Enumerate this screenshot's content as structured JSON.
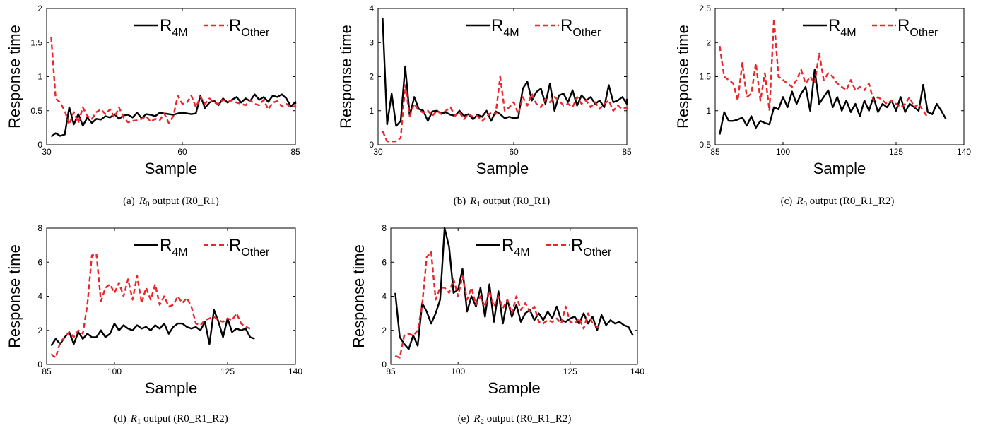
{
  "colors": {
    "r4m": "#000000",
    "rother": "#e8262b",
    "axis": "#000000"
  },
  "chart_data": [
    {
      "type": "line",
      "caption": {
        "tag": "(a)",
        "var": "R",
        "sub": "0",
        "rest": " output (R0_R1)"
      },
      "xlabel": "Sample",
      "ylabel": "Response time",
      "xlim": [
        30,
        85
      ],
      "ylim": [
        0,
        2
      ],
      "xticks": [
        30,
        60,
        85
      ],
      "yticks": [
        0,
        0.5,
        1,
        1.5,
        2
      ],
      "xtick_labels": [
        "30",
        "60",
        "85"
      ],
      "ytick_labels": [
        "0",
        "0.5",
        "1",
        "1.5",
        "2"
      ],
      "legend": {
        "position": "top-right",
        "items": [
          {
            "main": "R",
            "sub": "4M"
          },
          {
            "main": "R",
            "sub": "Other"
          }
        ]
      },
      "x_start": 31,
      "x_step": 1,
      "series": [
        {
          "values": [
            0.12,
            0.17,
            0.13,
            0.15,
            0.55,
            0.3,
            0.45,
            0.28,
            0.4,
            0.32,
            0.38,
            0.37,
            0.42,
            0.4,
            0.45,
            0.38,
            0.43,
            0.44,
            0.4,
            0.47,
            0.39,
            0.45,
            0.44,
            0.42,
            0.47,
            0.46,
            0.45,
            0.44,
            0.46,
            0.47,
            0.46,
            0.45,
            0.46,
            0.72,
            0.54,
            0.62,
            0.65,
            0.58,
            0.68,
            0.62,
            0.66,
            0.7,
            0.62,
            0.68,
            0.64,
            0.74,
            0.66,
            0.7,
            0.63,
            0.72,
            0.7,
            0.74,
            0.68,
            0.56,
            0.63,
            0.6
          ]
        },
        {
          "values": [
            1.58,
            0.68,
            0.62,
            0.5,
            0.3,
            0.48,
            0.32,
            0.55,
            0.42,
            0.38,
            0.48,
            0.52,
            0.45,
            0.52,
            0.4,
            0.55,
            0.4,
            0.33,
            0.35,
            0.36,
            0.38,
            0.42,
            0.34,
            0.38,
            0.36,
            0.46,
            0.32,
            0.42,
            0.72,
            0.6,
            0.62,
            0.72,
            0.55,
            0.7,
            0.6,
            0.68,
            0.62,
            0.6,
            0.66,
            0.63,
            0.65,
            0.62,
            0.6,
            0.58,
            0.65,
            0.6,
            0.58,
            0.66,
            0.52,
            0.62,
            0.64,
            0.56,
            0.6,
            0.55,
            0.57,
            0.52
          ]
        }
      ]
    },
    {
      "type": "line",
      "caption": {
        "tag": "(b)",
        "var": "R",
        "sub": "1",
        "rest": " output (R0_R1)"
      },
      "xlabel": "Sample",
      "ylabel": "Response time",
      "xlim": [
        30,
        85
      ],
      "ylim": [
        0,
        4
      ],
      "xticks": [
        30,
        60,
        85
      ],
      "yticks": [
        0,
        1,
        2,
        3,
        4
      ],
      "xtick_labels": [
        "30",
        "60",
        "85"
      ],
      "ytick_labels": [
        "0",
        "1",
        "2",
        "3",
        "4"
      ],
      "legend": {
        "position": "top-right",
        "items": [
          {
            "main": "R",
            "sub": "4M"
          },
          {
            "main": "R",
            "sub": "Other"
          }
        ]
      },
      "x_start": 31,
      "x_step": 1,
      "series": [
        {
          "values": [
            3.72,
            0.6,
            1.5,
            0.55,
            0.7,
            2.3,
            0.85,
            1.4,
            1.05,
            1.0,
            0.7,
            0.98,
            1.0,
            0.92,
            0.95,
            0.88,
            0.85,
            1.0,
            0.85,
            0.9,
            0.75,
            0.88,
            0.82,
            1.0,
            0.7,
            0.98,
            0.9,
            0.78,
            0.82,
            0.78,
            0.8,
            1.65,
            1.85,
            1.3,
            1.55,
            1.65,
            1.2,
            1.8,
            1.0,
            1.45,
            1.5,
            1.25,
            1.6,
            1.15,
            1.45,
            1.3,
            1.4,
            1.2,
            1.3,
            1.1,
            1.75,
            1.25,
            1.3,
            1.4,
            1.2,
            1.35
          ]
        },
        {
          "values": [
            0.4,
            0.1,
            0.1,
            0.1,
            0.2,
            1.75,
            0.85,
            1.2,
            1.0,
            0.95,
            1.0,
            0.85,
            1.0,
            0.9,
            1.0,
            1.1,
            0.85,
            0.95,
            0.75,
            0.9,
            0.82,
            0.85,
            0.7,
            0.82,
            0.95,
            0.9,
            2.0,
            1.0,
            1.1,
            1.25,
            0.9,
            1.4,
            1.15,
            1.5,
            1.2,
            1.1,
            1.35,
            1.25,
            1.4,
            1.3,
            1.15,
            1.2,
            1.1,
            1.4,
            1.2,
            1.3,
            1.1,
            1.25,
            1.05,
            1.2,
            1.3,
            1.0,
            1.15,
            1.05,
            1.1,
            0.95
          ]
        }
      ]
    },
    {
      "type": "line",
      "caption": {
        "tag": "(c)",
        "var": "R",
        "sub": "0",
        "rest": " output (R0_R1_R2)"
      },
      "xlabel": "Sample",
      "ylabel": "Response time",
      "xlim": [
        85,
        140
      ],
      "ylim": [
        0.5,
        2.5
      ],
      "xticks": [
        85,
        100,
        125,
        140
      ],
      "yticks": [
        0.5,
        1,
        1.5,
        2,
        2.5
      ],
      "xtick_labels": [
        "85",
        "100",
        "125",
        "140"
      ],
      "ytick_labels": [
        "0.5",
        "1",
        "1.5",
        "2",
        "2.5"
      ],
      "legend": {
        "position": "top-right",
        "items": [
          {
            "main": "R",
            "sub": "4M"
          },
          {
            "main": "R",
            "sub": "Other"
          }
        ]
      },
      "x_start": 86,
      "x_step": 1,
      "series": [
        {
          "values": [
            0.65,
            0.98,
            0.85,
            0.85,
            0.87,
            0.9,
            0.78,
            0.92,
            0.75,
            0.85,
            0.82,
            0.8,
            1.05,
            1.02,
            1.2,
            1.05,
            1.28,
            1.1,
            1.25,
            1.35,
            1.0,
            1.6,
            1.1,
            1.2,
            1.3,
            1.05,
            1.2,
            1.0,
            1.15,
            0.98,
            1.1,
            0.92,
            1.15,
            1.0,
            1.2,
            0.98,
            1.1,
            1.05,
            1.15,
            1.0,
            1.2,
            0.98,
            1.1,
            1.05,
            1.0,
            1.38,
            0.98,
            0.95,
            1.1,
            1.0,
            0.88
          ]
        },
        {
          "values": [
            1.95,
            1.5,
            1.45,
            1.4,
            1.15,
            1.7,
            1.2,
            1.25,
            1.7,
            1.15,
            1.55,
            1.0,
            2.35,
            1.5,
            1.45,
            1.4,
            1.35,
            1.45,
            1.6,
            1.4,
            1.5,
            1.4,
            1.85,
            1.45,
            1.55,
            1.5,
            1.4,
            1.35,
            1.3,
            1.45,
            1.3,
            1.35,
            1.3,
            1.4,
            1.15,
            1.2,
            1.15,
            1.1,
            1.15,
            1.1,
            1.05,
            1.1,
            1.2,
            1.05,
            1.1,
            1.0,
            0.9
          ]
        }
      ]
    },
    {
      "type": "line",
      "caption": {
        "tag": "(d)",
        "var": "R",
        "sub": "1",
        "rest": " output (R0_R1_R2)"
      },
      "xlabel": "Sample",
      "ylabel": "Response time",
      "xlim": [
        85,
        140
      ],
      "ylim": [
        0,
        8
      ],
      "xticks": [
        85,
        100,
        125,
        140
      ],
      "yticks": [
        0,
        2,
        4,
        6,
        8
      ],
      "xtick_labels": [
        "85",
        "100",
        "125",
        "140"
      ],
      "ytick_labels": [
        "0",
        "2",
        "4",
        "6",
        "8"
      ],
      "legend": {
        "position": "top-right",
        "items": [
          {
            "main": "R",
            "sub": "4M"
          },
          {
            "main": "R",
            "sub": "Other"
          }
        ]
      },
      "x_start": 86,
      "x_step": 1,
      "series": [
        {
          "values": [
            1.1,
            1.5,
            1.2,
            1.6,
            1.9,
            1.2,
            1.9,
            1.5,
            1.8,
            1.6,
            1.6,
            2.0,
            1.6,
            1.8,
            2.4,
            2.0,
            2.3,
            2.1,
            2.0,
            2.3,
            2.1,
            2.2,
            2.0,
            2.3,
            2.1,
            2.4,
            1.8,
            2.2,
            2.4,
            2.4,
            2.2,
            2.1,
            2.2,
            2.0,
            2.5,
            1.2,
            3.2,
            2.5,
            1.6,
            2.7,
            1.9,
            2.1,
            2.0,
            2.1,
            1.6,
            1.5
          ]
        },
        {
          "values": [
            0.6,
            0.4,
            1.3,
            1.6,
            1.9,
            1.6,
            2.0,
            1.8,
            3.5,
            6.4,
            6.5,
            3.7,
            4.5,
            4.7,
            4.2,
            4.8,
            4.0,
            5.0,
            3.8,
            5.2,
            3.6,
            4.5,
            3.8,
            4.7,
            3.5,
            4.0,
            3.4,
            3.5,
            4.0,
            3.6,
            3.9,
            3.4,
            2.4,
            2.3,
            2.6,
            2.7,
            2.8,
            2.6,
            2.5,
            2.7,
            2.6,
            3.0,
            2.4,
            2.2,
            2.1
          ]
        }
      ]
    },
    {
      "type": "line",
      "caption": {
        "tag": "(e)",
        "var": "R",
        "sub": "2",
        "rest": " output (R0_R1_R2)"
      },
      "xlabel": "Sample",
      "ylabel": "Response time",
      "xlim": [
        85,
        140
      ],
      "ylim": [
        0,
        8
      ],
      "xticks": [
        85,
        100,
        125,
        140
      ],
      "yticks": [
        0,
        2,
        4,
        6,
        8
      ],
      "xtick_labels": [
        "85",
        "100",
        "125",
        "140"
      ],
      "ytick_labels": [
        "0",
        "2",
        "4",
        "6",
        "8"
      ],
      "legend": {
        "position": "top-right",
        "items": [
          {
            "main": "R",
            "sub": "4M"
          },
          {
            "main": "R",
            "sub": "Other"
          }
        ]
      },
      "x_start": 86,
      "x_step": 1,
      "series": [
        {
          "values": [
            4.2,
            1.6,
            1.2,
            0.9,
            1.7,
            1.1,
            3.6,
            3.1,
            2.4,
            3.0,
            3.8,
            8.0,
            6.9,
            4.2,
            4.4,
            5.6,
            3.1,
            4.0,
            3.4,
            4.5,
            2.8,
            4.7,
            2.5,
            4.3,
            2.4,
            3.8,
            2.8,
            3.5,
            2.5,
            3.0,
            3.2,
            2.6,
            3.0,
            2.6,
            3.1,
            2.7,
            3.4,
            2.6,
            2.5,
            2.7,
            2.8,
            2.4,
            3.0,
            2.4,
            2.8,
            2.0,
            2.9,
            2.3,
            2.6,
            2.4,
            2.5,
            2.3,
            2.2,
            1.7
          ]
        },
        {
          "values": [
            0.5,
            0.4,
            1.7,
            1.8,
            1.7,
            2.0,
            3.5,
            6.3,
            6.6,
            3.8,
            4.5,
            4.5,
            4.2,
            5.0,
            4.0,
            5.2,
            3.8,
            4.5,
            3.5,
            4.0,
            3.4,
            4.3,
            3.4,
            4.0,
            3.3,
            3.8,
            3.0,
            4.0,
            3.2,
            3.6,
            3.1,
            3.4,
            2.5,
            2.4,
            2.6,
            2.5,
            2.7,
            2.4,
            3.4,
            2.5,
            2.4,
            2.7,
            2.1,
            3.0,
            2.4,
            2.2,
            2.1
          ]
        }
      ]
    }
  ]
}
